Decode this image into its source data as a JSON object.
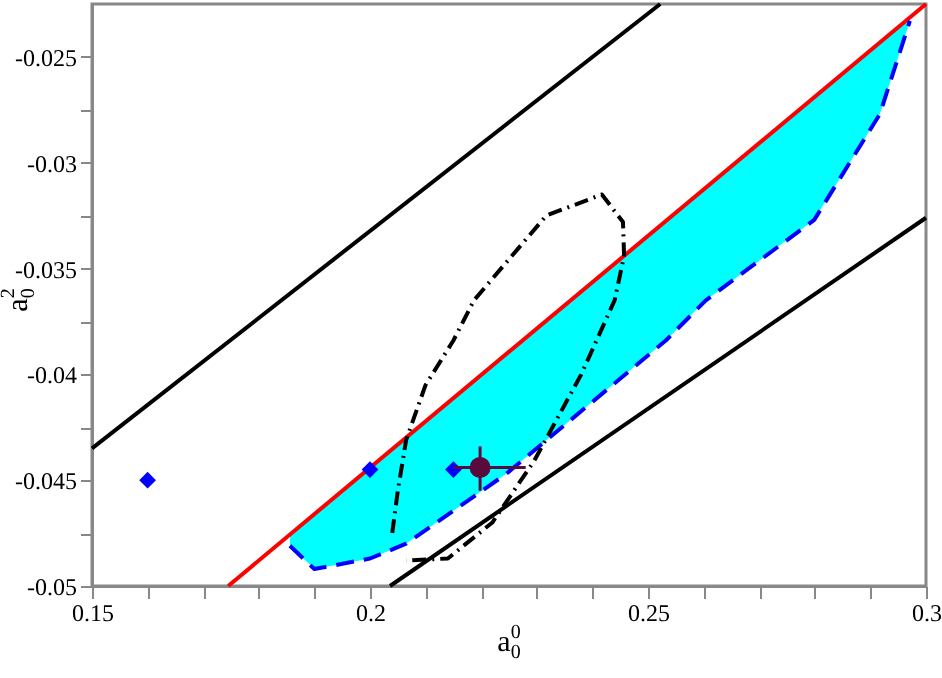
{
  "chart_data": {
    "type": "line",
    "xlabel": "a$^{0}$$_{0}$",
    "ylabel": "a$^{2}$$_{0}$",
    "xlim": [
      0.15,
      0.3
    ],
    "ylim": [
      -0.05,
      -0.0225
    ],
    "xticks": [
      0.15,
      {
        "value": 0.16,
        "label": null
      },
      {
        "value": 0.17,
        "label": null
      },
      {
        "value": 0.18,
        "label": null
      },
      {
        "value": 0.19,
        "label": null
      },
      0.2,
      {
        "value": 0.21,
        "label": null
      },
      {
        "value": 0.22,
        "label": null
      },
      {
        "value": 0.23,
        "label": null
      },
      {
        "value": 0.24,
        "label": null
      },
      0.25,
      {
        "value": 0.26,
        "label": null
      },
      {
        "value": 0.27,
        "label": null
      },
      {
        "value": 0.28,
        "label": null
      },
      {
        "value": 0.29,
        "label": null
      },
      0.3
    ],
    "yticks": [
      -0.05,
      {
        "value": -0.0475,
        "label": null
      },
      -0.045,
      {
        "value": -0.0425,
        "label": null
      },
      -0.04,
      {
        "value": -0.0375,
        "label": null
      },
      -0.035,
      {
        "value": -0.0325,
        "label": null
      },
      -0.03,
      {
        "value": -0.0275,
        "label": null
      },
      -0.025
    ],
    "grid": false,
    "series": [
      {
        "color": "#ff0000",
        "line_style": "solid",
        "x": [
          0.1745,
          0.3
        ],
        "values": [
          -0.05,
          -0.0225
        ]
      },
      {
        "color": "#0000ff",
        "line_style": "dashed",
        "x": [
          0.1856,
          0.19,
          0.2,
          0.2065,
          0.2245,
          0.2532,
          0.2604,
          0.2799,
          0.2917,
          0.2971
        ],
        "values": [
          -0.0481,
          -0.0492,
          -0.0487,
          -0.048,
          -0.0447,
          -0.0384,
          -0.0365,
          -0.0327,
          -0.0277,
          -0.0233
        ],
        "lower": [
          -0.0481,
          -0.0492,
          -0.0487,
          -0.048,
          -0.0447,
          -0.0384,
          -0.0365,
          -0.0327,
          -0.0277,
          -0.0233
        ],
        "upper": [
          -0.0476,
          -0.0466,
          -0.0444,
          -0.043,
          -0.0391,
          -0.0328,
          -0.0312,
          -0.0269,
          -0.0243,
          -0.0232
        ]
      },
      {
        "color": "#000000",
        "line_style": "solid",
        "x": [
          0.15,
          0.2522
        ],
        "values": [
          -0.0435,
          -0.0225
        ]
      },
      {
        "color": "#000000",
        "line_style": "solid",
        "x": [
          0.2036,
          0.3
        ],
        "values": [
          -0.05,
          -0.0326
        ]
      },
      {
        "color": "#000000",
        "line_style": "dashdot",
        "x": [
          0.204,
          0.205,
          0.2065,
          0.21,
          0.215,
          0.2187,
          0.2317,
          0.2417,
          0.2455,
          0.2457,
          0.244,
          0.238,
          0.2295,
          0.222,
          0.214,
          0.2065
        ],
        "values": [
          -0.0475,
          -0.0455,
          -0.0431,
          -0.0405,
          -0.0384,
          -0.0365,
          -0.0325,
          -0.0315,
          -0.0328,
          -0.0344,
          -0.0365,
          -0.04,
          -0.0441,
          -0.047,
          -0.0487,
          -0.0488
        ]
      },
      {
        "type": "scatter",
        "color": "#0000ff",
        "marker": "diamond",
        "x": [
          0.16,
          0.2,
          0.215
        ],
        "values": [
          -0.045,
          -0.0445,
          -0.0445
        ]
      },
      {
        "type": "scatter",
        "color": "#5a0a3c",
        "marker": "circle",
        "x": [
          0.2198
        ],
        "values": [
          -0.0444
        ],
        "errors": [
          [
            -0.0455,
            -0.0434
          ]
        ],
        "xerrors": [
          [
            0.215,
            0.228
          ]
        ]
      }
    ]
  }
}
